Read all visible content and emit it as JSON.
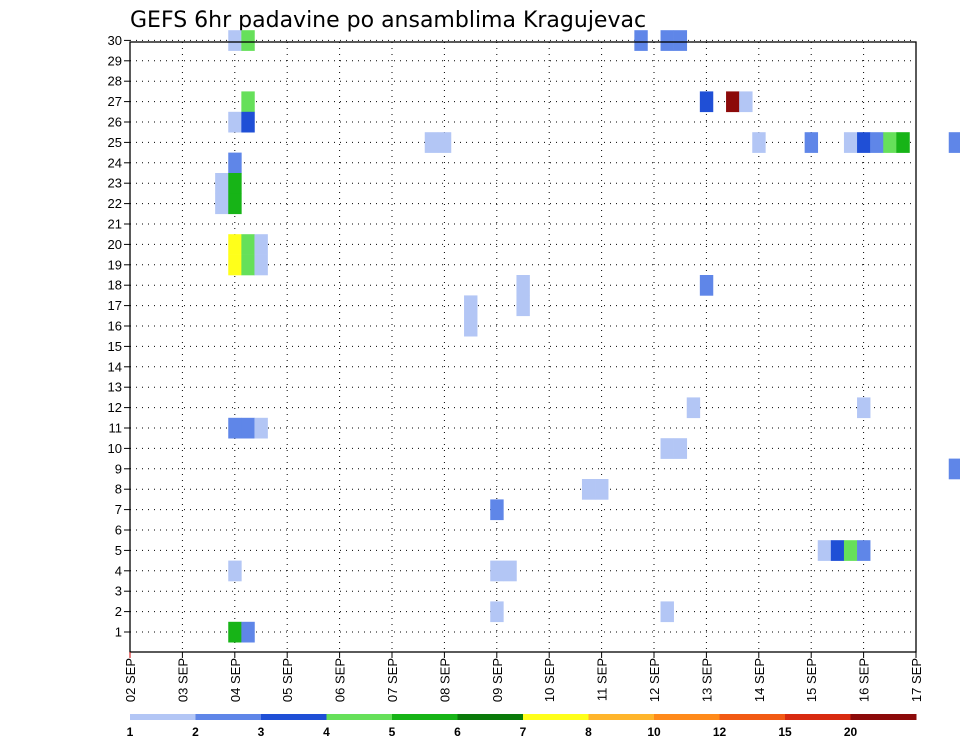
{
  "chart_data": {
    "type": "heatmap",
    "title": "GEFS 6hr padavine po ansamblima Kragujevac",
    "xlabel": "",
    "ylabel": "",
    "x_ticks": [
      "02 SEP",
      "03 SEP",
      "04 SEP",
      "05 SEP",
      "06 SEP",
      "07 SEP",
      "08 SEP",
      "09 SEP",
      "10 SEP",
      "11 SEP",
      "12 SEP",
      "13 SEP",
      "14 SEP",
      "15 SEP",
      "16 SEP",
      "17 SEP"
    ],
    "y_ticks": [
      "1",
      "2",
      "3",
      "4",
      "5",
      "6",
      "7",
      "8",
      "9",
      "10",
      "11",
      "12",
      "13",
      "14",
      "15",
      "16",
      "17",
      "18",
      "19",
      "20",
      "21",
      "22",
      "23",
      "24",
      "25",
      "26",
      "27",
      "28",
      "29",
      "30"
    ],
    "x_range": [
      "02 SEP",
      "17 SEP"
    ],
    "y_range": [
      1,
      30
    ],
    "step": "6hr",
    "grid": true,
    "colorbar": {
      "position": "bottom",
      "levels": [
        "1",
        "2",
        "3",
        "4",
        "5",
        "6",
        "7",
        "8",
        "10",
        "12",
        "15",
        "20"
      ],
      "colors": [
        "#b3c6f5",
        "#5f86e8",
        "#1f4fd6",
        "#66e05a",
        "#17b417",
        "#0a7a0a",
        "#ffff1a",
        "#ffb52b",
        "#ff8a1a",
        "#f25a14",
        "#d82a10",
        "#8c0a0a"
      ]
    },
    "cells": [
      {
        "member": 30,
        "time": "04 SEP 00Z",
        "color": "#b3c6f5"
      },
      {
        "member": 30,
        "time": "04 SEP 06Z",
        "color": "#66e05a"
      },
      {
        "member": 30,
        "time": "11 SEP 18Z",
        "color": "#5f86e8"
      },
      {
        "member": 30,
        "time": "12 SEP 06Z",
        "color": "#5f86e8"
      },
      {
        "member": 30,
        "time": "12 SEP 12Z",
        "color": "#5f86e8"
      },
      {
        "member": 27,
        "time": "04 SEP 06Z",
        "color": "#66e05a"
      },
      {
        "member": 27,
        "time": "13 SEP 00Z",
        "color": "#1f4fd6"
      },
      {
        "member": 27,
        "time": "13 SEP 12Z",
        "color": "#8c0a0a"
      },
      {
        "member": 27,
        "time": "13 SEP 18Z",
        "color": "#b3c6f5"
      },
      {
        "member": 26,
        "time": "04 SEP 00Z",
        "color": "#b3c6f5"
      },
      {
        "member": 26,
        "time": "04 SEP 06Z",
        "color": "#1f4fd6"
      },
      {
        "member": 25,
        "time": "07 SEP 18Z",
        "color": "#b3c6f5"
      },
      {
        "member": 25,
        "time": "08 SEP 00Z",
        "color": "#b3c6f5"
      },
      {
        "member": 25,
        "time": "14 SEP 00Z",
        "color": "#b3c6f5"
      },
      {
        "member": 25,
        "time": "15 SEP 00Z",
        "color": "#5f86e8"
      },
      {
        "member": 25,
        "time": "15 SEP 18Z",
        "color": "#b3c6f5"
      },
      {
        "member": 25,
        "time": "16 SEP 00Z",
        "color": "#1f4fd6"
      },
      {
        "member": 25,
        "time": "16 SEP 06Z",
        "color": "#5f86e8"
      },
      {
        "member": 25,
        "time": "16 SEP 12Z",
        "color": "#66e05a"
      },
      {
        "member": 25,
        "time": "16 SEP 18Z",
        "color": "#17b417"
      },
      {
        "member": 25,
        "time": "17 SEP 18Z",
        "color": "#5f86e8"
      },
      {
        "member": 24,
        "time": "04 SEP 00Z",
        "color": "#5f86e8"
      },
      {
        "member": 23,
        "time": "03 SEP 18Z",
        "color": "#b3c6f5"
      },
      {
        "member": 23,
        "time": "04 SEP 00Z",
        "color": "#17b417"
      },
      {
        "member": 22,
        "time": "03 SEP 18Z",
        "color": "#b3c6f5"
      },
      {
        "member": 22,
        "time": "04 SEP 00Z",
        "color": "#17b417"
      },
      {
        "member": 20,
        "time": "04 SEP 00Z",
        "color": "#ffff1a"
      },
      {
        "member": 20,
        "time": "04 SEP 06Z",
        "color": "#66e05a"
      },
      {
        "member": 20,
        "time": "04 SEP 12Z",
        "color": "#b3c6f5"
      },
      {
        "member": 19,
        "time": "04 SEP 00Z",
        "color": "#ffff1a"
      },
      {
        "member": 19,
        "time": "04 SEP 06Z",
        "color": "#66e05a"
      },
      {
        "member": 19,
        "time": "04 SEP 12Z",
        "color": "#b3c6f5"
      },
      {
        "member": 18,
        "time": "13 SEP 00Z",
        "color": "#5f86e8"
      },
      {
        "member": 18,
        "time": "09 SEP 12Z",
        "color": "#b3c6f5"
      },
      {
        "member": 17,
        "time": "09 SEP 12Z",
        "color": "#b3c6f5"
      },
      {
        "member": 17,
        "time": "08 SEP 12Z",
        "color": "#b3c6f5"
      },
      {
        "member": 16,
        "time": "08 SEP 12Z",
        "color": "#b3c6f5"
      },
      {
        "member": 12,
        "time": "12 SEP 18Z",
        "color": "#b3c6f5"
      },
      {
        "member": 12,
        "time": "16 SEP 00Z",
        "color": "#b3c6f5"
      },
      {
        "member": 11,
        "time": "04 SEP 00Z",
        "color": "#5f86e8"
      },
      {
        "member": 11,
        "time": "04 SEP 06Z",
        "color": "#5f86e8"
      },
      {
        "member": 11,
        "time": "04 SEP 12Z",
        "color": "#b3c6f5"
      },
      {
        "member": 10,
        "time": "12 SEP 06Z",
        "color": "#b3c6f5"
      },
      {
        "member": 10,
        "time": "12 SEP 12Z",
        "color": "#b3c6f5"
      },
      {
        "member": 9,
        "time": "17 SEP 18Z",
        "color": "#5f86e8"
      },
      {
        "member": 8,
        "time": "10 SEP 18Z",
        "color": "#b3c6f5"
      },
      {
        "member": 8,
        "time": "11 SEP 00Z",
        "color": "#b3c6f5"
      },
      {
        "member": 7,
        "time": "09 SEP 00Z",
        "color": "#5f86e8"
      },
      {
        "member": 5,
        "time": "15 SEP 06Z",
        "color": "#b3c6f5"
      },
      {
        "member": 5,
        "time": "15 SEP 12Z",
        "color": "#1f4fd6"
      },
      {
        "member": 5,
        "time": "15 SEP 18Z",
        "color": "#66e05a"
      },
      {
        "member": 5,
        "time": "16 SEP 00Z",
        "color": "#5f86e8"
      },
      {
        "member": 4,
        "time": "04 SEP 00Z",
        "color": "#b3c6f5"
      },
      {
        "member": 4,
        "time": "09 SEP 00Z",
        "color": "#b3c6f5"
      },
      {
        "member": 4,
        "time": "09 SEP 06Z",
        "color": "#b3c6f5"
      },
      {
        "member": 2,
        "time": "09 SEP 00Z",
        "color": "#b3c6f5"
      },
      {
        "member": 2,
        "time": "12 SEP 06Z",
        "color": "#b3c6f5"
      },
      {
        "member": 1,
        "time": "04 SEP 00Z",
        "color": "#17b417"
      },
      {
        "member": 1,
        "time": "04 SEP 06Z",
        "color": "#5f86e8"
      }
    ]
  }
}
